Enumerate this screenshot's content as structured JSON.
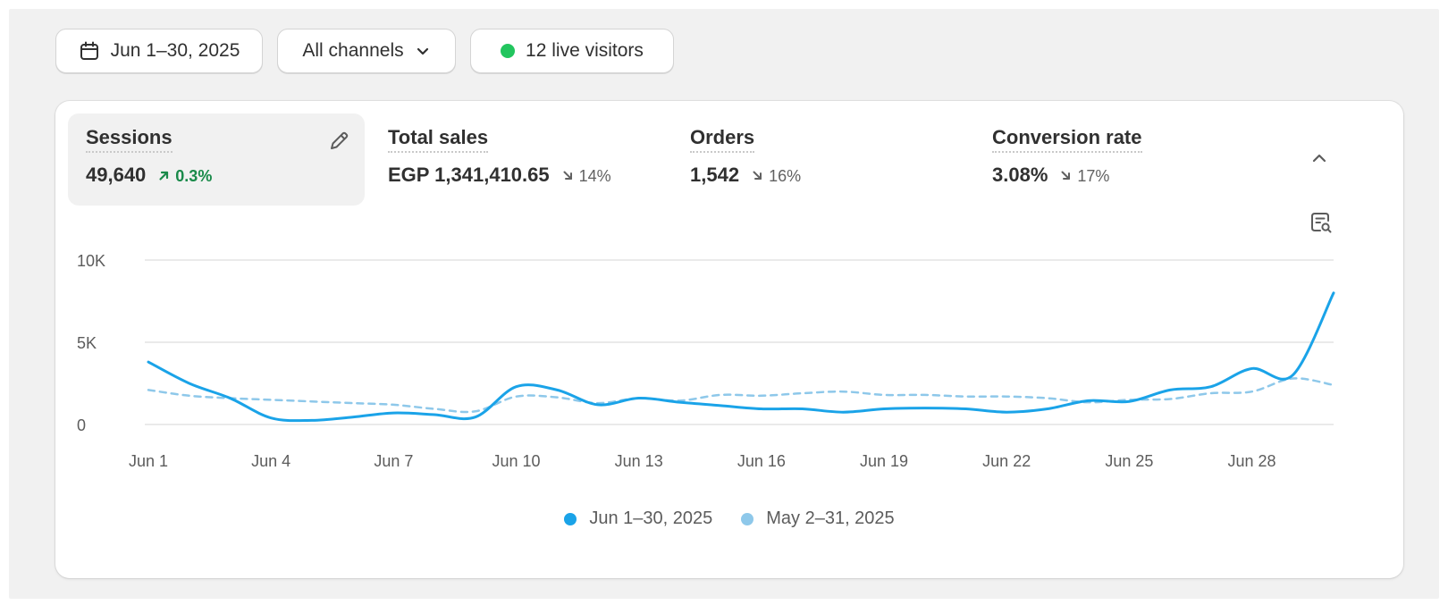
{
  "toolbar": {
    "date_range": "Jun 1–30, 2025",
    "channel_filter": "All channels",
    "live_visitors": "12 live visitors"
  },
  "metrics": [
    {
      "title": "Sessions",
      "value": "49,640",
      "delta": "0.3%",
      "direction": "up"
    },
    {
      "title": "Total sales",
      "value": "EGP 1,341,410.65",
      "delta": "14%",
      "direction": "down"
    },
    {
      "title": "Orders",
      "value": "1,542",
      "delta": "16%",
      "direction": "down"
    },
    {
      "title": "Conversion rate",
      "value": "3.08%",
      "delta": "17%",
      "direction": "down"
    }
  ],
  "colors": {
    "current_series": "#1aa3e8",
    "previous_series": "#8ec8ea",
    "live_dot": "#22c55e",
    "delta_up": "#1a8a4a",
    "delta_down": "#616161"
  },
  "chart_data": {
    "type": "line",
    "title": "Sessions",
    "ylim": [
      0,
      10000
    ],
    "yticks": [
      {
        "value": 0,
        "label": "0"
      },
      {
        "value": 5000,
        "label": "5K"
      },
      {
        "value": 10000,
        "label": "10K"
      }
    ],
    "xticks": [
      {
        "day": 1,
        "label": "Jun 1"
      },
      {
        "day": 4,
        "label": "Jun 4"
      },
      {
        "day": 7,
        "label": "Jun 7"
      },
      {
        "day": 10,
        "label": "Jun 10"
      },
      {
        "day": 13,
        "label": "Jun 13"
      },
      {
        "day": 16,
        "label": "Jun 16"
      },
      {
        "day": 19,
        "label": "Jun 19"
      },
      {
        "day": 22,
        "label": "Jun 22"
      },
      {
        "day": 25,
        "label": "Jun 25"
      },
      {
        "day": 28,
        "label": "Jun 28"
      }
    ],
    "x": [
      1,
      2,
      3,
      4,
      5,
      6,
      7,
      8,
      9,
      10,
      11,
      12,
      13,
      14,
      15,
      16,
      17,
      18,
      19,
      20,
      21,
      22,
      23,
      24,
      25,
      26,
      27,
      28,
      29,
      30
    ],
    "series": [
      {
        "name": "Jun 1–30, 2025",
        "style": "solid",
        "values": [
          3800,
          2500,
          1600,
          400,
          250,
          450,
          700,
          600,
          450,
          2300,
          2100,
          1200,
          1600,
          1350,
          1150,
          950,
          950,
          750,
          950,
          1000,
          950,
          750,
          950,
          1450,
          1400,
          2100,
          2300,
          3400,
          3000,
          8000
        ]
      },
      {
        "name": "May 2–31, 2025",
        "style": "dashed",
        "values": [
          2100,
          1750,
          1600,
          1500,
          1400,
          1300,
          1200,
          950,
          800,
          1700,
          1650,
          1300,
          1600,
          1450,
          1800,
          1750,
          1900,
          2000,
          1800,
          1800,
          1700,
          1700,
          1600,
          1350,
          1500,
          1550,
          1900,
          2000,
          2800,
          2400
        ]
      }
    ],
    "legend": [
      "Jun 1–30, 2025",
      "May 2–31, 2025"
    ]
  }
}
